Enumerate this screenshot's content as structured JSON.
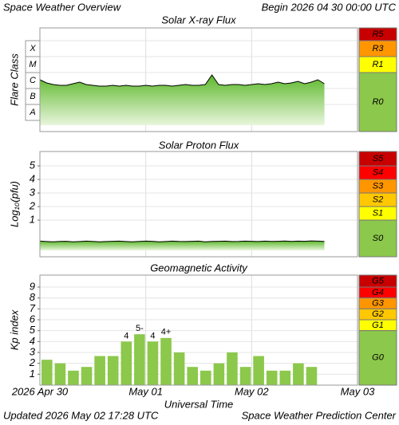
{
  "header": {
    "title": "Space Weather Overview",
    "begin": "Begin 2026 04 30 00:00 UTC"
  },
  "footer": {
    "updated": "Updated 2026 May 02 17:28 UTC",
    "source": "Space Weather Prediction Center"
  },
  "chart_data": [
    {
      "type": "line",
      "title": "Solar X-ray Flux",
      "y_label": "Flare Class",
      "xlim": [
        0,
        72
      ],
      "ylim": [
        -8.7,
        -2.2
      ],
      "yticks": [
        {
          "value": -7.5,
          "label": "A"
        },
        {
          "value": -6.5,
          "label": "B"
        },
        {
          "value": -5.5,
          "label": "C"
        },
        {
          "value": -4.5,
          "label": "M"
        },
        {
          "value": -3.5,
          "label": "X"
        }
      ],
      "color": "#000000",
      "x": [
        0,
        1.5,
        3,
        4.5,
        6,
        7.5,
        9,
        10.5,
        12,
        13.5,
        15,
        16.5,
        18,
        19.5,
        21,
        22.5,
        24,
        25.5,
        27,
        28.5,
        30,
        31.5,
        33,
        34.5,
        36,
        37.5,
        39,
        40.5,
        42,
        43.5,
        45,
        46.5,
        48,
        49.5,
        51,
        52.5,
        54,
        55.5,
        57,
        58.5,
        60,
        61.5,
        63,
        64.5
      ],
      "values": [
        -5.45,
        -5.65,
        -5.75,
        -5.8,
        -5.8,
        -5.7,
        -5.6,
        -5.75,
        -5.8,
        -5.85,
        -5.85,
        -5.8,
        -5.85,
        -5.8,
        -5.85,
        -5.85,
        -5.8,
        -5.85,
        -5.8,
        -5.8,
        -5.85,
        -5.8,
        -5.75,
        -5.8,
        -5.8,
        -5.75,
        -5.15,
        -5.75,
        -5.8,
        -5.75,
        -5.75,
        -5.8,
        -5.75,
        -5.7,
        -5.75,
        -5.7,
        -5.6,
        -5.7,
        -5.65,
        -5.55,
        -5.7,
        -5.6,
        -5.45,
        -5.7
      ],
      "scale": [
        {
          "label": "R5",
          "color": "#c80000",
          "min": -3
        },
        {
          "label": "R3",
          "color": "#ff9600",
          "min": -4
        },
        {
          "label": "R1",
          "color": "#ffff00",
          "min": -5
        },
        {
          "label": "R0",
          "color": "#8cc84b"
        }
      ]
    },
    {
      "type": "line",
      "title": "Solar Proton Flux",
      "y_label": "Log₁₀(pfu)",
      "xlim": [
        0,
        72
      ],
      "ylim": [
        -1.7,
        6.06
      ],
      "yticks": [
        1,
        2,
        3,
        4,
        5
      ],
      "grid": true,
      "color": "#000000",
      "x": [
        0,
        1.5,
        3,
        4.5,
        6,
        7.5,
        9,
        10.5,
        12,
        13.5,
        15,
        16.5,
        18,
        19.5,
        21,
        22.5,
        24,
        25.5,
        27,
        28.5,
        30,
        31.5,
        33,
        34.5,
        36,
        37.5,
        39,
        40.5,
        42,
        43.5,
        45,
        46.5,
        48,
        49.5,
        51,
        52.5,
        54,
        55.5,
        57,
        58.5,
        60,
        61.5,
        63,
        64.5
      ],
      "values": [
        -0.55,
        -0.58,
        -0.6,
        -0.57,
        -0.56,
        -0.6,
        -0.58,
        -0.55,
        -0.57,
        -0.6,
        -0.58,
        -0.56,
        -0.55,
        -0.58,
        -0.6,
        -0.57,
        -0.55,
        -0.56,
        -0.6,
        -0.58,
        -0.55,
        -0.57,
        -0.58,
        -0.56,
        -0.55,
        -0.6,
        -0.57,
        -0.56,
        -0.55,
        -0.58,
        -0.57,
        -0.55,
        -0.56,
        -0.58,
        -0.55,
        -0.57,
        -0.56,
        -0.54,
        -0.57,
        -0.55,
        -0.56,
        -0.53,
        -0.55,
        -0.57
      ],
      "scale": [
        {
          "label": "S5",
          "color": "#c80000",
          "min": 5
        },
        {
          "label": "S4",
          "color": "#ff0000",
          "min": 4
        },
        {
          "label": "S3",
          "color": "#ff9600",
          "min": 3
        },
        {
          "label": "S2",
          "color": "#ffc800",
          "min": 2
        },
        {
          "label": "S1",
          "color": "#ffff00",
          "min": 1
        },
        {
          "label": "S0",
          "color": "#8cc84b"
        }
      ]
    },
    {
      "type": "bar",
      "title": "Geomagnetic Activity",
      "y_label": "Kp index",
      "x_label": "Universal Time",
      "xlim": [
        0,
        72
      ],
      "ylim": [
        0,
        10.1
      ],
      "yticks": [
        1,
        2,
        3,
        4,
        5,
        6,
        7,
        8,
        9
      ],
      "grid": true,
      "xticks": [
        {
          "value": 0,
          "label": "2026 Apr 30"
        },
        {
          "value": 24,
          "label": "May 01"
        },
        {
          "value": 48,
          "label": "May 02"
        },
        {
          "value": 72,
          "label": "May 03"
        }
      ],
      "bar_width": 3,
      "color": "#8cc84b",
      "x": [
        0,
        3,
        6,
        9,
        12,
        15,
        18,
        21,
        24,
        27,
        30,
        33,
        36,
        39,
        42,
        45,
        48,
        51,
        54,
        57,
        60
      ],
      "values": [
        2.33,
        2,
        1.33,
        1.67,
        2.67,
        2.67,
        4,
        4.67,
        4,
        4.33,
        3,
        1.67,
        1.33,
        2,
        3,
        1.67,
        2.67,
        1.33,
        1.33,
        2,
        1.67
      ],
      "value_labels": [
        null,
        null,
        null,
        null,
        null,
        null,
        "4",
        "5-",
        "4",
        "4+",
        null,
        null,
        null,
        null,
        null,
        null,
        null,
        null,
        null,
        null,
        null
      ],
      "scale": [
        {
          "label": "G5",
          "color": "#c80000",
          "min": 9
        },
        {
          "label": "G4",
          "color": "#ff0000",
          "min": 8
        },
        {
          "label": "G3",
          "color": "#ff9600",
          "min": 7
        },
        {
          "label": "G2",
          "color": "#ffc800",
          "min": 6
        },
        {
          "label": "G1",
          "color": "#ffff00",
          "min": 5
        },
        {
          "label": "G0",
          "color": "#8cc84b"
        }
      ]
    }
  ]
}
